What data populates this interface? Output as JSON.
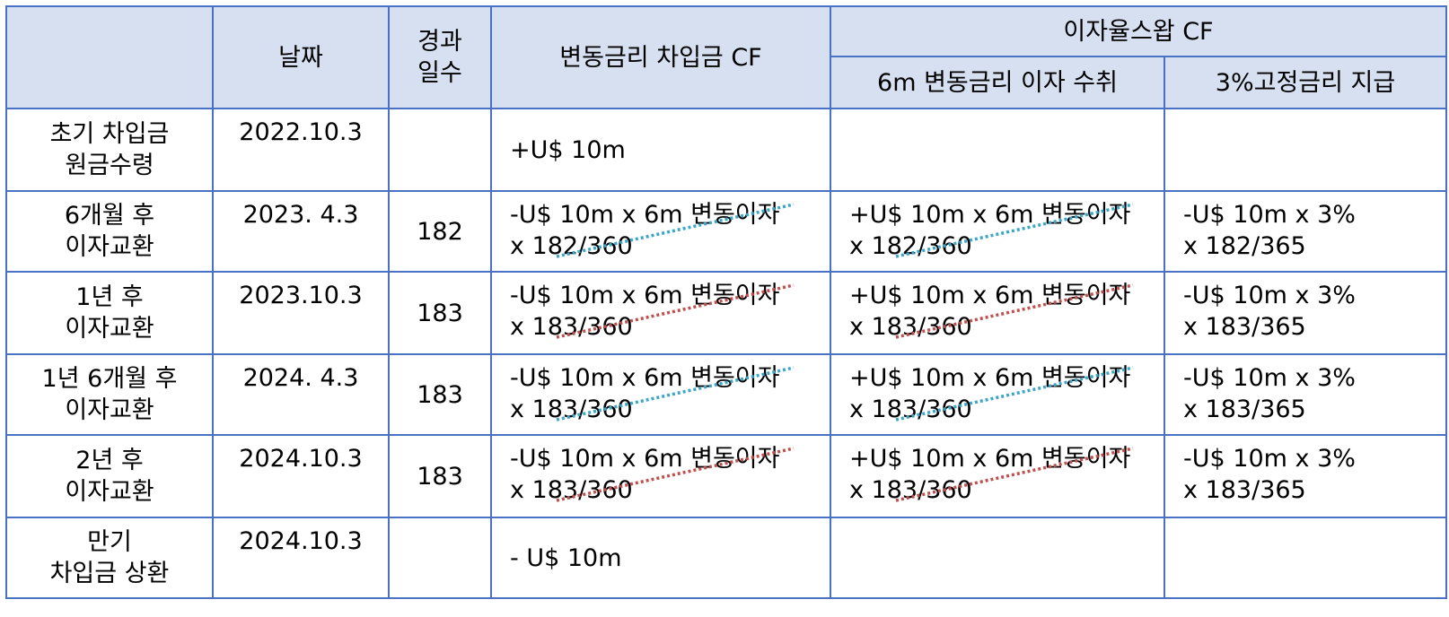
{
  "header": {
    "date": "날짜",
    "days_l1": "경과",
    "days_l2": "일수",
    "loan_cf": "변동금리 차입금 CF",
    "swap_cf": "이자율스왑 CF",
    "swap_receive": "6m 변동금리 이자 수취",
    "swap_pay": "3%고정금리 지급"
  },
  "colors": {
    "blue_dots": "#3aa7c8",
    "red_dots": "#c0504d",
    "border": "#4a72c4",
    "header_bg": "#d6e0f1"
  },
  "rows": [
    {
      "label_l1": "초기 차입금",
      "label_l2": "원금수령",
      "date": "2022.10.3",
      "days": "",
      "loan_l1": "+U$ 10m",
      "loan_l2": "",
      "recv_l1": "",
      "recv_l2": "",
      "pay_l1": "",
      "pay_l2": ""
    },
    {
      "label_l1": "6개월 후",
      "label_l2": "이자교환",
      "date": "2023. 4.3",
      "days": "182",
      "loan_l1": "-U$ 10m x 6m 변동이자",
      "loan_l2": "x 182/360",
      "recv_l1": "+U$ 10m x 6m 변동이자",
      "recv_l2": "x 182/360",
      "pay_l1": "-U$ 10m x 3%",
      "pay_l2": "x 182/365",
      "mark": "blue"
    },
    {
      "label_l1": "1년 후",
      "label_l2": "이자교환",
      "date": "2023.10.3",
      "days": "183",
      "loan_l1": "-U$ 10m x 6m 변동이자",
      "loan_l2": "x 183/360",
      "recv_l1": "+U$ 10m x 6m 변동이자",
      "recv_l2": "x 183/360",
      "pay_l1": "-U$ 10m x 3%",
      "pay_l2": "x 183/365",
      "mark": "red"
    },
    {
      "label_l1": "1년 6개월 후",
      "label_l2": "이자교환",
      "date": "2024. 4.3",
      "days": "183",
      "loan_l1": "-U$ 10m x 6m 변동이자",
      "loan_l2": "x 183/360",
      "recv_l1": "+U$ 10m x 6m 변동이자",
      "recv_l2": "x 183/360",
      "pay_l1": "-U$ 10m x 3%",
      "pay_l2": "x 183/365",
      "mark": "blue"
    },
    {
      "label_l1": "2년 후",
      "label_l2": "이자교환",
      "date": "2024.10.3",
      "days": "183",
      "loan_l1": "-U$ 10m x 6m 변동이자",
      "loan_l2": "x 183/360",
      "recv_l1": "+U$ 10m x 6m 변동이자",
      "recv_l2": "x 183/360",
      "pay_l1": "-U$ 10m x 3%",
      "pay_l2": "x 183/365",
      "mark": "red"
    },
    {
      "label_l1": "만기",
      "label_l2": "차입금 상환",
      "date": "2024.10.3",
      "days": "",
      "loan_l1": "- U$ 10m",
      "loan_l2": "",
      "recv_l1": "",
      "recv_l2": "",
      "pay_l1": "",
      "pay_l2": ""
    }
  ]
}
